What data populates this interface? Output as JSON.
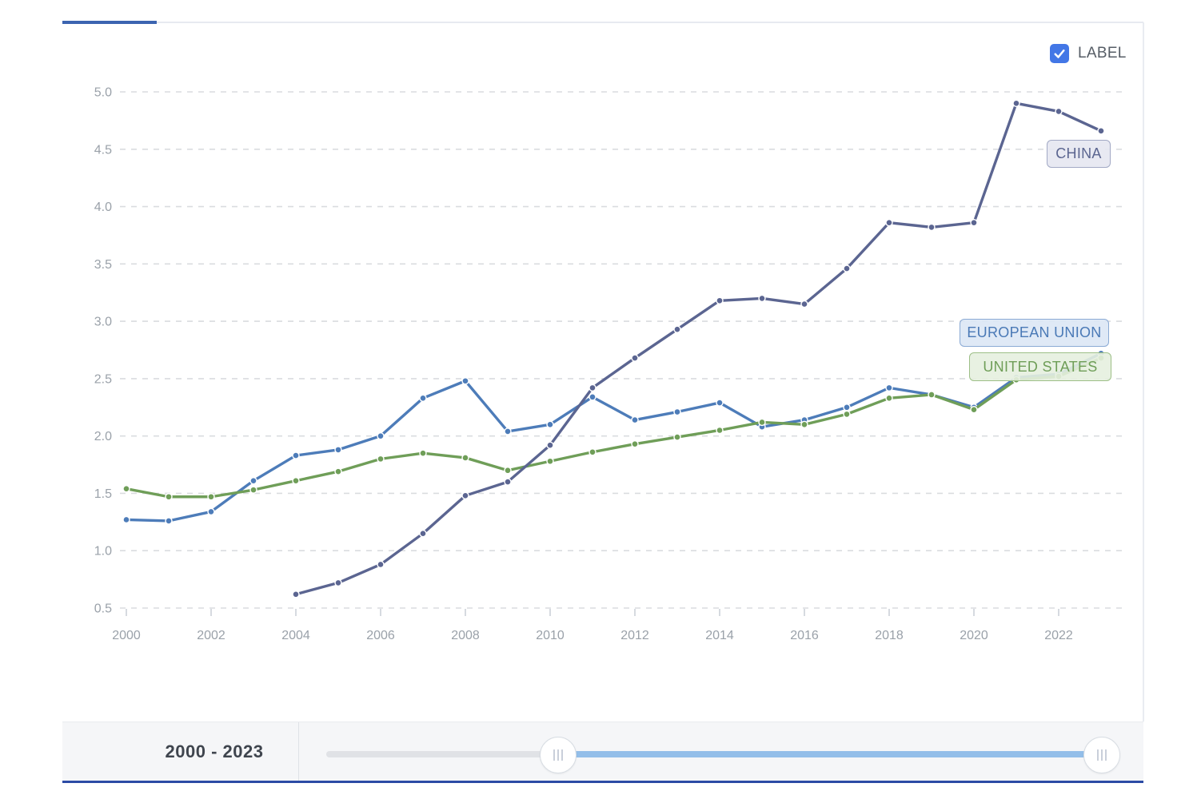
{
  "legend": {
    "checkbox_label": "LABEL",
    "checkbox_checked": true,
    "checkbox_color": "#4377e6"
  },
  "footer": {
    "range_label": "2000 - 2023"
  },
  "chart_data": {
    "type": "line",
    "x": [
      2000,
      2001,
      2002,
      2003,
      2004,
      2005,
      2006,
      2007,
      2008,
      2009,
      2010,
      2011,
      2012,
      2013,
      2014,
      2015,
      2016,
      2017,
      2018,
      2019,
      2020,
      2021,
      2022,
      2023
    ],
    "series": [
      {
        "name": "EUROPEAN UNION",
        "color": "#4d7cb9",
        "values": [
          1.27,
          1.26,
          1.34,
          1.61,
          1.83,
          1.88,
          2.0,
          2.33,
          2.48,
          2.04,
          2.1,
          2.34,
          2.14,
          2.21,
          2.29,
          2.08,
          2.14,
          2.25,
          2.42,
          2.36,
          2.25,
          2.51,
          2.54,
          2.72
        ]
      },
      {
        "name": "UNITED STATES",
        "color": "#6f9e58",
        "values": [
          1.54,
          1.47,
          1.47,
          1.53,
          1.61,
          1.69,
          1.8,
          1.85,
          1.81,
          1.7,
          1.78,
          1.86,
          1.93,
          1.99,
          2.05,
          2.12,
          2.1,
          2.19,
          2.33,
          2.36,
          2.23,
          2.49,
          2.52,
          2.68
        ]
      },
      {
        "name": "CHINA",
        "color": "#5b6591",
        "values": [
          null,
          null,
          null,
          null,
          0.62,
          0.72,
          0.88,
          1.15,
          1.48,
          1.6,
          1.92,
          2.42,
          2.68,
          2.93,
          3.18,
          3.2,
          3.15,
          3.46,
          3.86,
          3.82,
          3.86,
          4.9,
          4.83,
          4.66
        ]
      }
    ],
    "title": "",
    "xlabel": "",
    "ylabel": "",
    "ylim": [
      0.5,
      5.0
    ],
    "yticks": [
      0.5,
      1.0,
      1.5,
      2.0,
      2.5,
      3.0,
      3.5,
      4.0,
      4.5,
      5.0
    ],
    "xticks": [
      2000,
      2002,
      2004,
      2006,
      2008,
      2010,
      2012,
      2014,
      2016,
      2018,
      2020,
      2022
    ],
    "grid": "horizontal-dashed",
    "legend_position": "end-of-line-labels"
  }
}
